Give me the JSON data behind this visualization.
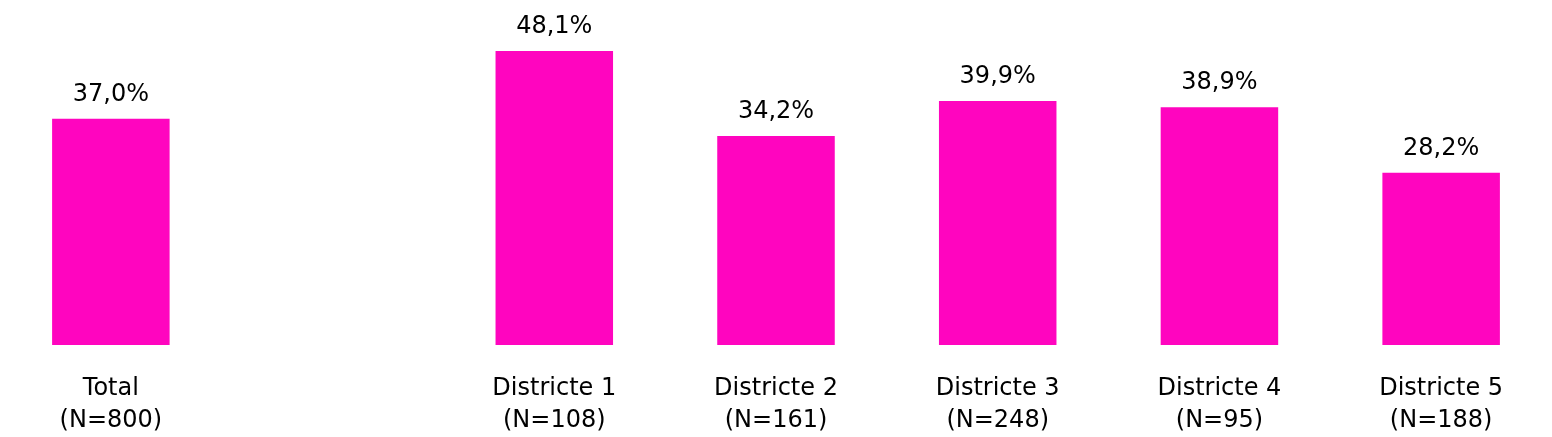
{
  "chart_data": {
    "type": "bar",
    "categories": [
      "Total (N=800)",
      null,
      "Districte 1 (N=108)",
      "Districte 2 (N=161)",
      "Districte 3 (N=248)",
      "Districte 4 (N=95)",
      "Districte 5 (N=188)"
    ],
    "values": [
      37.0,
      null,
      48.1,
      34.2,
      39.9,
      38.9,
      28.2
    ],
    "value_labels": [
      "37,0%",
      null,
      "48,1%",
      "34,2%",
      "39,9%",
      "38,9%",
      "28,2%"
    ],
    "color": "#ff05bf",
    "grid": false,
    "tick_labels": "x"
  }
}
